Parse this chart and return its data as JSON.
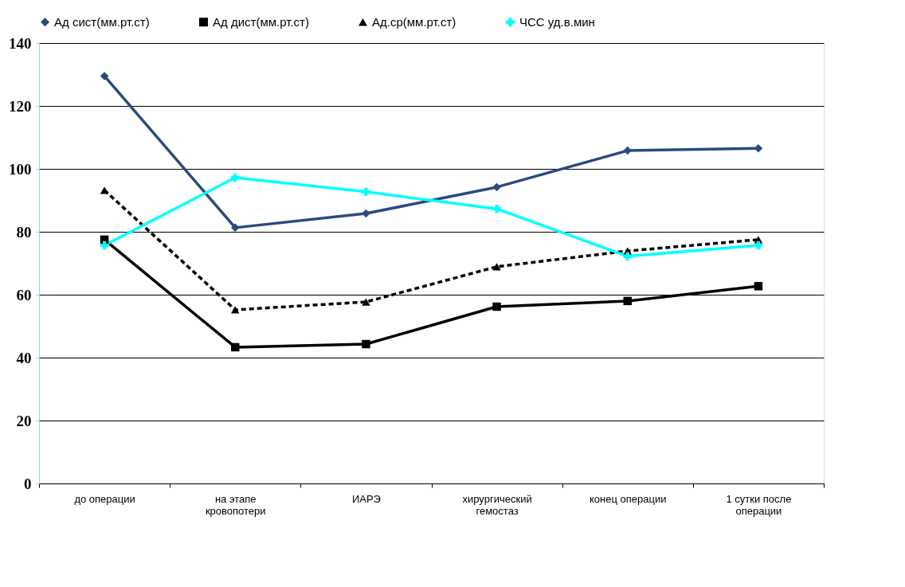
{
  "chart_data": {
    "type": "line",
    "categories": [
      "до операции",
      "на этапе\nкровопотери",
      "ИАРЭ",
      "хирургический\nгемостаз",
      "конец операции",
      "1 сутки после\nоперации"
    ],
    "series": [
      {
        "name": "Ад сист(мм.рт.ст)",
        "color": "#2b4a7e",
        "marker": "diamond",
        "line_style": "solid",
        "values": [
          129.5,
          81.3,
          85.8,
          94.2,
          105.8,
          106.5
        ]
      },
      {
        "name": "Ад дист(мм.рт.ст)",
        "color": "#000000",
        "marker": "square",
        "line_style": "solid",
        "values": [
          77.5,
          43.3,
          44.3,
          56.2,
          58,
          62.7
        ]
      },
      {
        "name": "Ад.ср(мм.рт.ст)",
        "color": "#000000",
        "marker": "triangle",
        "line_style": "dashed",
        "values": [
          93.2,
          55.2,
          57.7,
          68.9,
          73.9,
          77.5
        ]
      },
      {
        "name": "ЧСС уд.в.мин",
        "color": "#00ffff",
        "marker": "cross",
        "line_style": "solid",
        "values": [
          75.7,
          97.2,
          92.7,
          87.3,
          72.2,
          75.7
        ]
      }
    ],
    "ylim": [
      0,
      140
    ],
    "yticks": [
      0,
      20,
      40,
      60,
      80,
      100,
      120,
      140
    ],
    "grid": "y",
    "legend": "top"
  }
}
